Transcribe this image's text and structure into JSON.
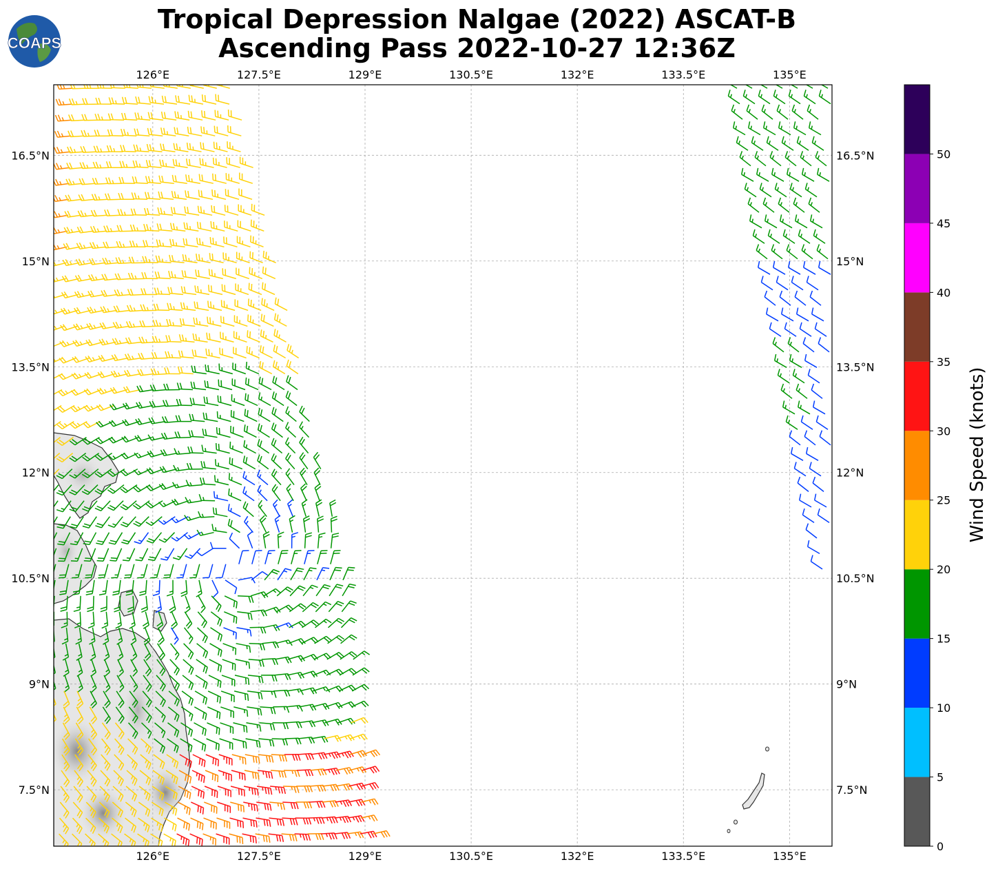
{
  "title": {
    "line1": "Tropical Depression Nalgae (2022) ASCAT-B",
    "line2": "Ascending Pass 2022-10-27 12:36Z"
  },
  "logo": {
    "text": "COAPS",
    "icon": "globe-icon"
  },
  "map": {
    "lon_ticks": [
      "126°E",
      "127.5°E",
      "129°E",
      "130.5°E",
      "132°E",
      "133.5°E",
      "135°E"
    ],
    "lat_ticks": [
      "16.5°N",
      "15°N",
      "13.5°N",
      "12°N",
      "10.5°N",
      "9°N",
      "7.5°N"
    ],
    "lon_range": [
      124.6,
      135.6
    ],
    "lat_range": [
      6.7,
      17.5
    ],
    "grid": true,
    "land_color": "#e6e6e6",
    "coast_color": "#333333"
  },
  "colorbar": {
    "label": "Wind Speed (knots)",
    "ticks": [
      "0",
      "5",
      "10",
      "15",
      "20",
      "25",
      "30",
      "35",
      "40",
      "45",
      "50"
    ],
    "bins": [
      {
        "min": 0,
        "max": 5,
        "color": "#585858"
      },
      {
        "min": 5,
        "max": 10,
        "color": "#00bfff"
      },
      {
        "min": 10,
        "max": 15,
        "color": "#003cff"
      },
      {
        "min": 15,
        "max": 20,
        "color": "#009600"
      },
      {
        "min": 20,
        "max": 25,
        "color": "#ffd20a"
      },
      {
        "min": 25,
        "max": 30,
        "color": "#ff8c00"
      },
      {
        "min": 30,
        "max": 35,
        "color": "#ff1414"
      },
      {
        "min": 35,
        "max": 40,
        "color": "#7d3c28"
      },
      {
        "min": 40,
        "max": 45,
        "color": "#ff00ff"
      },
      {
        "min": 45,
        "max": 50,
        "color": "#8c00b4"
      },
      {
        "min": 50,
        "max": 55,
        "color": "#2d005a"
      }
    ]
  },
  "swaths": [
    {
      "name": "west-swath",
      "center_lon": 127.1,
      "center_lat": 10.7
    },
    {
      "name": "east-swath",
      "lon_range": [
        134.8,
        135.6
      ],
      "lat_range": [
        10.5,
        17.5
      ]
    }
  ]
}
